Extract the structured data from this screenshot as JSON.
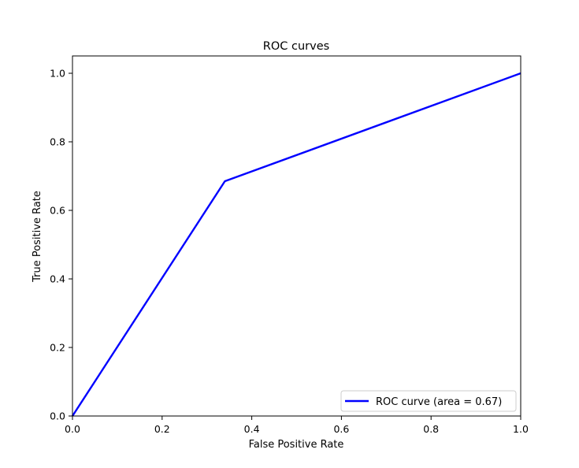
{
  "chart_data": {
    "type": "line",
    "title": "ROC curves",
    "xlabel": "False Positive Rate",
    "ylabel": "True Positive Rate",
    "xlim": [
      0.0,
      1.0
    ],
    "ylim": [
      0.0,
      1.05
    ],
    "xticks": [
      "0.0",
      "0.2",
      "0.4",
      "0.6",
      "0.8",
      "1.0"
    ],
    "yticks": [
      "0.0",
      "0.2",
      "0.4",
      "0.6",
      "0.8",
      "1.0"
    ],
    "grid": false,
    "legend_position": "lower right",
    "series": [
      {
        "name": "ROC curve (area = 0.67)",
        "color": "#0000ff",
        "x": [
          0.0,
          0.34,
          1.0
        ],
        "y": [
          0.0,
          0.685,
          1.0
        ]
      }
    ]
  }
}
